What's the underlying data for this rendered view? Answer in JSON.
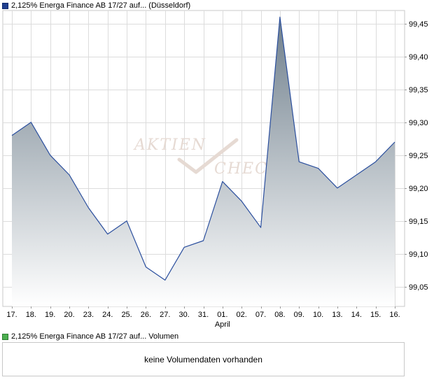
{
  "price_legend": {
    "label": "2,125% Energa Finance AB 17/27 auf... (Düsseldorf)",
    "swatch_color": "#1f3f8f"
  },
  "volume_legend": {
    "label": "2,125% Energa Finance AB 17/27 auf... Volumen",
    "swatch_color": "#4caf50"
  },
  "volume_panel": {
    "message": "keine Volumendaten vorhanden"
  },
  "watermark": {
    "line1": "AKTIEN",
    "line2": "CHECK"
  },
  "chart_data": {
    "type": "area",
    "categories": [
      "17.",
      "18.",
      "19.",
      "20.",
      "23.",
      "24.",
      "25.",
      "26.",
      "27.",
      "30.",
      "31.",
      "01.",
      "02.",
      "07.",
      "08.",
      "09.",
      "10.",
      "13.",
      "14.",
      "15.",
      "16."
    ],
    "month_label": "April",
    "month_label_index": 11,
    "series": [
      {
        "values": [
          99.28,
          99.3,
          99.25,
          99.22,
          99.17,
          99.13,
          99.15,
          99.08,
          99.06,
          99.11,
          99.12,
          99.21,
          99.18,
          99.14,
          99.46,
          99.24,
          99.23,
          99.2,
          99.22,
          99.24,
          99.27
        ]
      }
    ],
    "y_ticks": [
      "99,05",
      "99,10",
      "99,15",
      "99,20",
      "99,25",
      "99,30",
      "99,35",
      "99,40",
      "99,45"
    ],
    "y_tick_values": [
      99.05,
      99.1,
      99.15,
      99.2,
      99.25,
      99.3,
      99.35,
      99.4,
      99.45
    ],
    "ylim": [
      99.02,
      99.47
    ],
    "grid": true,
    "y_axis_position": "right",
    "line_color": "#2b4f9e",
    "fill_top_color": "#6f7f8c",
    "fill_bottom_color": "#ffffff"
  }
}
